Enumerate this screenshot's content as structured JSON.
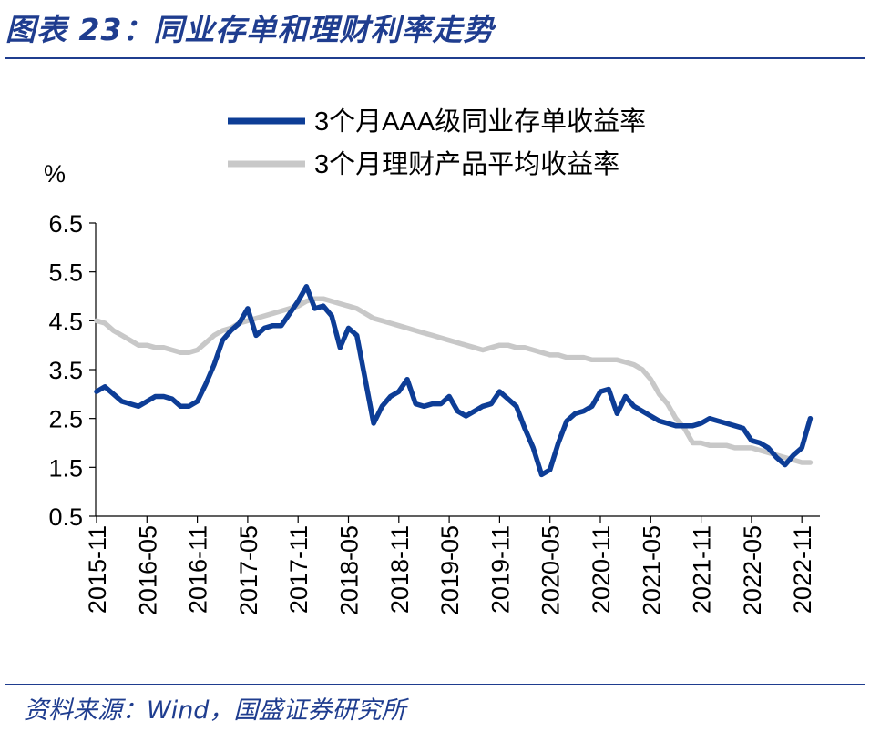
{
  "header": {
    "title": "图表 23：同业存单和理财利率走势"
  },
  "footer": {
    "source": "资料来源：Wind，国盛证券研究所"
  },
  "colors": {
    "accent": "#1f3d8f",
    "series_cd": "#0d3d96",
    "series_wm": "#c8c8c8"
  },
  "chart_data": {
    "type": "line",
    "title": "",
    "xlabel": "",
    "ylabel": "%",
    "ylim": [
      0.5,
      6.5
    ],
    "yticks": [
      "0.5",
      "1.5",
      "2.5",
      "3.5",
      "4.5",
      "5.5",
      "6.5"
    ],
    "x_tick_labels": [
      "2015-11",
      "2016-05",
      "2016-11",
      "2017-05",
      "2017-11",
      "2018-05",
      "2018-11",
      "2019-05",
      "2019-11",
      "2020-05",
      "2020-11",
      "2021-05",
      "2021-11",
      "2022-05",
      "2022-11"
    ],
    "grid": false,
    "legend": "top",
    "series": [
      {
        "name": "3个月AAA级同业存单收益率",
        "color": "#0d3d96",
        "points": [
          [
            "2015-11",
            3.05
          ],
          [
            "2015-12",
            3.15
          ],
          [
            "2016-01",
            3.0
          ],
          [
            "2016-02",
            2.85
          ],
          [
            "2016-03",
            2.8
          ],
          [
            "2016-04",
            2.75
          ],
          [
            "2016-05",
            2.85
          ],
          [
            "2016-06",
            2.95
          ],
          [
            "2016-07",
            2.95
          ],
          [
            "2016-08",
            2.9
          ],
          [
            "2016-09",
            2.75
          ],
          [
            "2016-10",
            2.75
          ],
          [
            "2016-11",
            2.85
          ],
          [
            "2016-12",
            3.2
          ],
          [
            "2017-01",
            3.6
          ],
          [
            "2017-02",
            4.1
          ],
          [
            "2017-03",
            4.3
          ],
          [
            "2017-04",
            4.45
          ],
          [
            "2017-05",
            4.75
          ],
          [
            "2017-06",
            4.2
          ],
          [
            "2017-07",
            4.35
          ],
          [
            "2017-08",
            4.4
          ],
          [
            "2017-09",
            4.4
          ],
          [
            "2017-10",
            4.65
          ],
          [
            "2017-11",
            4.9
          ],
          [
            "2017-12",
            5.2
          ],
          [
            "2018-01",
            4.75
          ],
          [
            "2018-02",
            4.8
          ],
          [
            "2018-03",
            4.6
          ],
          [
            "2018-04",
            3.95
          ],
          [
            "2018-05",
            4.35
          ],
          [
            "2018-06",
            4.2
          ],
          [
            "2018-07",
            3.3
          ],
          [
            "2018-08",
            2.4
          ],
          [
            "2018-09",
            2.75
          ],
          [
            "2018-10",
            2.95
          ],
          [
            "2018-11",
            3.05
          ],
          [
            "2018-12",
            3.3
          ],
          [
            "2019-01",
            2.8
          ],
          [
            "2019-02",
            2.75
          ],
          [
            "2019-03",
            2.8
          ],
          [
            "2019-04",
            2.8
          ],
          [
            "2019-05",
            2.95
          ],
          [
            "2019-06",
            2.65
          ],
          [
            "2019-07",
            2.55
          ],
          [
            "2019-08",
            2.65
          ],
          [
            "2019-09",
            2.75
          ],
          [
            "2019-10",
            2.8
          ],
          [
            "2019-11",
            3.05
          ],
          [
            "2019-12",
            2.9
          ],
          [
            "2020-01",
            2.75
          ],
          [
            "2020-02",
            2.3
          ],
          [
            "2020-03",
            1.9
          ],
          [
            "2020-04",
            1.35
          ],
          [
            "2020-05",
            1.45
          ],
          [
            "2020-06",
            2.0
          ],
          [
            "2020-07",
            2.45
          ],
          [
            "2020-08",
            2.6
          ],
          [
            "2020-09",
            2.65
          ],
          [
            "2020-10",
            2.75
          ],
          [
            "2020-11",
            3.05
          ],
          [
            "2020-12",
            3.1
          ],
          [
            "2021-01",
            2.6
          ],
          [
            "2021-02",
            2.95
          ],
          [
            "2021-03",
            2.75
          ],
          [
            "2021-04",
            2.65
          ],
          [
            "2021-05",
            2.55
          ],
          [
            "2021-06",
            2.45
          ],
          [
            "2021-07",
            2.4
          ],
          [
            "2021-08",
            2.35
          ],
          [
            "2021-09",
            2.35
          ],
          [
            "2021-10",
            2.35
          ],
          [
            "2021-11",
            2.4
          ],
          [
            "2021-12",
            2.5
          ],
          [
            "2022-01",
            2.45
          ],
          [
            "2022-02",
            2.4
          ],
          [
            "2022-03",
            2.35
          ],
          [
            "2022-04",
            2.3
          ],
          [
            "2022-05",
            2.05
          ],
          [
            "2022-06",
            2.0
          ],
          [
            "2022-07",
            1.9
          ],
          [
            "2022-08",
            1.7
          ],
          [
            "2022-09",
            1.55
          ],
          [
            "2022-10",
            1.75
          ],
          [
            "2022-11",
            1.9
          ],
          [
            "2022-12",
            2.5
          ]
        ]
      },
      {
        "name": "3个月理财产品平均收益率",
        "color": "#c8c8c8",
        "points": [
          [
            "2015-11",
            4.5
          ],
          [
            "2015-12",
            4.45
          ],
          [
            "2016-01",
            4.3
          ],
          [
            "2016-02",
            4.2
          ],
          [
            "2016-03",
            4.1
          ],
          [
            "2016-04",
            4.0
          ],
          [
            "2016-05",
            4.0
          ],
          [
            "2016-06",
            3.95
          ],
          [
            "2016-07",
            3.95
          ],
          [
            "2016-08",
            3.9
          ],
          [
            "2016-09",
            3.85
          ],
          [
            "2016-10",
            3.85
          ],
          [
            "2016-11",
            3.9
          ],
          [
            "2016-12",
            4.05
          ],
          [
            "2017-01",
            4.2
          ],
          [
            "2017-02",
            4.3
          ],
          [
            "2017-03",
            4.35
          ],
          [
            "2017-04",
            4.45
          ],
          [
            "2017-05",
            4.5
          ],
          [
            "2017-06",
            4.55
          ],
          [
            "2017-07",
            4.6
          ],
          [
            "2017-08",
            4.65
          ],
          [
            "2017-09",
            4.7
          ],
          [
            "2017-10",
            4.75
          ],
          [
            "2017-11",
            4.8
          ],
          [
            "2017-12",
            4.9
          ],
          [
            "2018-01",
            4.95
          ],
          [
            "2018-02",
            4.95
          ],
          [
            "2018-03",
            4.9
          ],
          [
            "2018-04",
            4.85
          ],
          [
            "2018-05",
            4.8
          ],
          [
            "2018-06",
            4.75
          ],
          [
            "2018-07",
            4.65
          ],
          [
            "2018-08",
            4.55
          ],
          [
            "2018-09",
            4.5
          ],
          [
            "2018-10",
            4.45
          ],
          [
            "2018-11",
            4.4
          ],
          [
            "2018-12",
            4.35
          ],
          [
            "2019-01",
            4.3
          ],
          [
            "2019-02",
            4.25
          ],
          [
            "2019-03",
            4.2
          ],
          [
            "2019-04",
            4.15
          ],
          [
            "2019-05",
            4.1
          ],
          [
            "2019-06",
            4.05
          ],
          [
            "2019-07",
            4.0
          ],
          [
            "2019-08",
            3.95
          ],
          [
            "2019-09",
            3.9
          ],
          [
            "2019-10",
            3.95
          ],
          [
            "2019-11",
            4.0
          ],
          [
            "2019-12",
            4.0
          ],
          [
            "2020-01",
            3.95
          ],
          [
            "2020-02",
            3.95
          ],
          [
            "2020-03",
            3.9
          ],
          [
            "2020-04",
            3.85
          ],
          [
            "2020-05",
            3.8
          ],
          [
            "2020-06",
            3.8
          ],
          [
            "2020-07",
            3.75
          ],
          [
            "2020-08",
            3.75
          ],
          [
            "2020-09",
            3.75
          ],
          [
            "2020-10",
            3.7
          ],
          [
            "2020-11",
            3.7
          ],
          [
            "2020-12",
            3.7
          ],
          [
            "2021-01",
            3.7
          ],
          [
            "2021-02",
            3.65
          ],
          [
            "2021-03",
            3.6
          ],
          [
            "2021-04",
            3.5
          ],
          [
            "2021-05",
            3.3
          ],
          [
            "2021-06",
            3.0
          ],
          [
            "2021-07",
            2.8
          ],
          [
            "2021-08",
            2.5
          ],
          [
            "2021-09",
            2.3
          ],
          [
            "2021-10",
            2.0
          ],
          [
            "2021-11",
            2.0
          ],
          [
            "2021-12",
            1.95
          ],
          [
            "2022-01",
            1.95
          ],
          [
            "2022-02",
            1.95
          ],
          [
            "2022-03",
            1.9
          ],
          [
            "2022-04",
            1.9
          ],
          [
            "2022-05",
            1.9
          ],
          [
            "2022-06",
            1.85
          ],
          [
            "2022-07",
            1.8
          ],
          [
            "2022-08",
            1.75
          ],
          [
            "2022-09",
            1.7
          ],
          [
            "2022-10",
            1.65
          ],
          [
            "2022-11",
            1.6
          ],
          [
            "2022-12",
            1.6
          ]
        ]
      }
    ]
  }
}
